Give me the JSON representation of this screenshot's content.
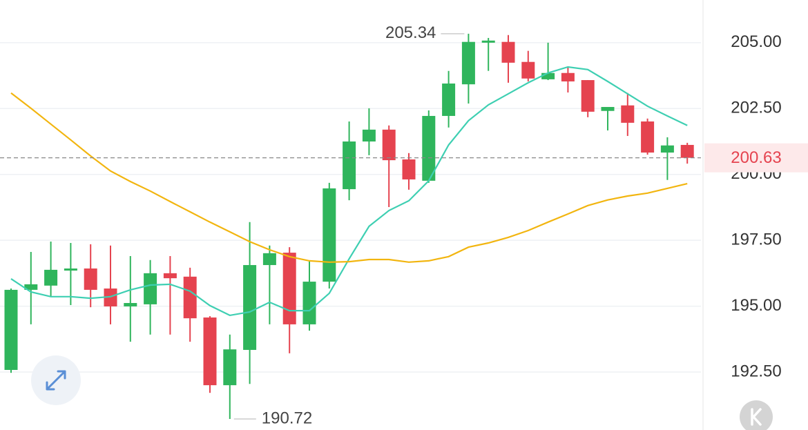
{
  "chart_data": {
    "type": "candlestick",
    "open": [
      192.58,
      195.62,
      195.78,
      196.35,
      196.43,
      195.67,
      194.99,
      195.07,
      196.25,
      196.12,
      194.57,
      192.0,
      193.34,
      196.56,
      197.03,
      194.31,
      195.93,
      199.44,
      201.25,
      201.7,
      200.57,
      199.76,
      202.22,
      203.42,
      205.0,
      205.03,
      204.27,
      203.61,
      203.85,
      203.58,
      202.41,
      202.62,
      202.01,
      200.83,
      201.12
    ],
    "high": [
      195.67,
      197.06,
      197.45,
      197.4,
      197.35,
      197.3,
      196.9,
      196.75,
      196.9,
      196.46,
      194.62,
      193.92,
      198.19,
      197.3,
      197.24,
      196.72,
      199.68,
      202.01,
      202.51,
      201.86,
      200.81,
      202.43,
      203.93,
      205.34,
      205.18,
      205.29,
      204.69,
      205.0,
      204.08,
      203.58,
      202.56,
      203.09,
      202.12,
      201.41,
      201.2
    ],
    "low": [
      192.47,
      194.31,
      195.36,
      195.04,
      194.96,
      194.31,
      193.65,
      193.92,
      193.92,
      193.65,
      191.71,
      190.72,
      192.05,
      194.31,
      193.21,
      194.07,
      195.67,
      199.02,
      200.73,
      198.76,
      199.42,
      199.68,
      201.78,
      202.69,
      203.93,
      203.48,
      203.53,
      203.58,
      203.11,
      202.17,
      201.67,
      201.46,
      200.75,
      199.79,
      200.41
    ],
    "close": [
      195.62,
      195.83,
      196.38,
      196.43,
      195.62,
      194.99,
      195.12,
      196.25,
      196.06,
      194.54,
      192.0,
      193.36,
      196.56,
      197.01,
      194.31,
      195.93,
      199.47,
      201.25,
      201.7,
      200.54,
      199.81,
      202.22,
      203.45,
      205.03,
      205.08,
      204.24,
      203.64,
      203.85,
      203.53,
      202.38,
      202.56,
      201.96,
      200.83,
      201.1,
      200.63
    ],
    "up_color": "#2fb55c",
    "down_color": "#e5434f",
    "lines": [
      {
        "color": "#3ecfb2",
        "values": [
          196.04,
          195.54,
          195.36,
          195.36,
          195.3,
          195.36,
          195.62,
          195.8,
          195.83,
          195.57,
          195.02,
          194.65,
          194.78,
          195.15,
          194.83,
          194.83,
          195.49,
          196.8,
          198.03,
          198.63,
          199.0,
          199.76,
          201.12,
          202.04,
          202.64,
          203.06,
          203.48,
          203.85,
          204.08,
          203.98,
          203.53,
          203.06,
          202.59,
          202.22,
          201.86
        ]
      },
      {
        "color": "#f2b50f",
        "values": [
          203.09,
          202.51,
          201.91,
          201.31,
          200.7,
          200.13,
          199.73,
          199.37,
          198.97,
          198.58,
          198.19,
          197.82,
          197.45,
          197.14,
          196.88,
          196.72,
          196.67,
          196.69,
          196.77,
          196.77,
          196.67,
          196.72,
          196.88,
          197.24,
          197.4,
          197.61,
          197.87,
          198.19,
          198.5,
          198.82,
          199.03,
          199.18,
          199.29,
          199.47,
          199.65
        ]
      }
    ],
    "ylim": [
      190.3,
      206.62
    ],
    "yticks": [
      {
        "value": 205,
        "label": "205.00"
      },
      {
        "value": 202.5,
        "label": "202.50"
      },
      {
        "value": 200,
        "label": "200.00"
      },
      {
        "value": 197.5,
        "label": "197.50"
      },
      {
        "value": 195,
        "label": "195.00"
      },
      {
        "value": 192.5,
        "label": "192.50"
      }
    ],
    "grid": true
  }
}
